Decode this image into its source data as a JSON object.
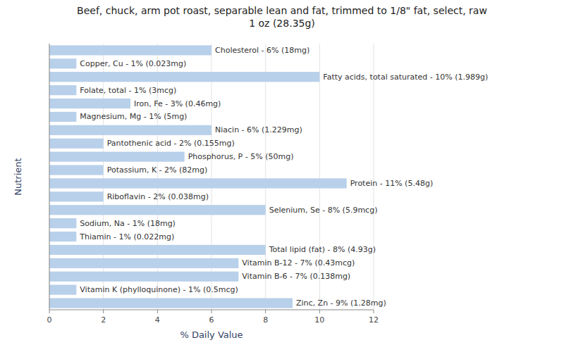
{
  "chart_data": {
    "type": "bar",
    "orientation": "horizontal",
    "title": "Beef, chuck, arm pot roast, separable lean and fat, trimmed to 1/8\" fat, select, raw\n1 oz (28.35g)",
    "x_label": "% Daily Value",
    "y_label": "Nutrient",
    "categories": [
      "Cholesterol - 6% (18mg)",
      "Copper, Cu - 1% (0.023mg)",
      "Fatty acids, total saturated - 10% (1.989g)",
      "Folate, total - 1% (3mcg)",
      "Iron, Fe - 3% (0.46mg)",
      "Magnesium, Mg - 1% (5mg)",
      "Niacin - 6% (1.229mg)",
      "Pantothenic acid - 2% (0.155mg)",
      "Phosphorus, P - 5% (50mg)",
      "Potassium, K - 2% (82mg)",
      "Protein - 11% (5.48g)",
      "Riboflavin - 2% (0.038mg)",
      "Selenium, Se - 8% (5.9mcg)",
      "Sodium, Na - 1% (18mg)",
      "Thiamin - 1% (0.022mg)",
      "Total lipid (fat) - 8% (4.93g)",
      "Vitamin B-12 - 7% (0.43mcg)",
      "Vitamin B-6 - 7% (0.138mg)",
      "Vitamin K (phylloquinone) - 1% (0.5mcg)",
      "Zinc, Zn - 9% (1.28mg)"
    ],
    "values": [
      6,
      1,
      10,
      1,
      3,
      1,
      6,
      2,
      5,
      2,
      11,
      2,
      8,
      1,
      1,
      8,
      7,
      7,
      1,
      9
    ],
    "color": "#b8d0ea",
    "xlim": [
      0,
      12
    ],
    "xticks": [
      0,
      2,
      4,
      6,
      8,
      10,
      12
    ],
    "grid": true
  }
}
